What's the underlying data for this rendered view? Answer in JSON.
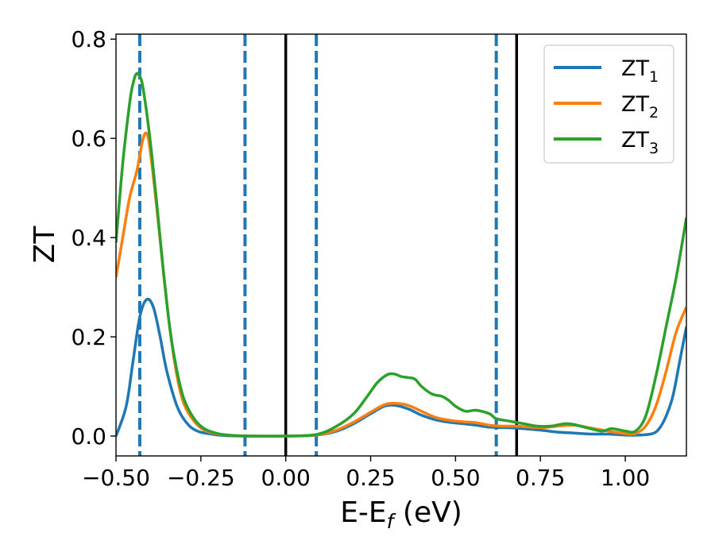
{
  "chart_data": {
    "type": "line",
    "title": "",
    "xlabel": "E-E_f (eV)",
    "ylabel": "ZT",
    "xlim": [
      -0.5,
      1.18
    ],
    "ylim": [
      -0.04,
      0.81
    ],
    "x_ticks": [
      -0.5,
      -0.25,
      0.0,
      0.25,
      0.5,
      0.75,
      1.0
    ],
    "x_tick_labels": [
      "−0.50",
      "−0.25",
      "0.00",
      "0.25",
      "0.50",
      "0.75",
      "1.00"
    ],
    "y_ticks": [
      0.0,
      0.2,
      0.4,
      0.6,
      0.8
    ],
    "y_tick_labels": [
      "0.0",
      "0.2",
      "0.4",
      "0.6",
      "0.8"
    ],
    "grid": false,
    "legend_position": "top-right",
    "vertical_lines": [
      {
        "x": -0.43,
        "style": "dashed",
        "color": "#1f77b4"
      },
      {
        "x": -0.12,
        "style": "dashed",
        "color": "#1f77b4"
      },
      {
        "x": 0.09,
        "style": "dashed",
        "color": "#1f77b4"
      },
      {
        "x": 0.62,
        "style": "dashed",
        "color": "#1f77b4"
      },
      {
        "x": 0.0,
        "style": "solid",
        "color": "#000000"
      },
      {
        "x": 0.68,
        "style": "solid",
        "color": "#000000"
      }
    ],
    "series": [
      {
        "name": "ZT",
        "subscript": "1",
        "color": "#1f77b4",
        "x": [
          -0.5,
          -0.47,
          -0.45,
          -0.43,
          -0.41,
          -0.39,
          -0.37,
          -0.35,
          -0.32,
          -0.29,
          -0.26,
          -0.22,
          -0.18,
          -0.12,
          0.0,
          0.09,
          0.15,
          0.2,
          0.25,
          0.29,
          0.32,
          0.36,
          0.4,
          0.44,
          0.48,
          0.52,
          0.56,
          0.6,
          0.65,
          0.7,
          0.75,
          0.8,
          0.85,
          0.9,
          0.95,
          1.0,
          1.04,
          1.08,
          1.1,
          1.12,
          1.14,
          1.16,
          1.18
        ],
        "y": [
          0.0,
          0.06,
          0.15,
          0.24,
          0.275,
          0.26,
          0.2,
          0.13,
          0.06,
          0.025,
          0.01,
          0.004,
          0.001,
          0.0,
          0.0,
          0.002,
          0.01,
          0.025,
          0.045,
          0.06,
          0.062,
          0.055,
          0.042,
          0.033,
          0.028,
          0.025,
          0.022,
          0.018,
          0.017,
          0.015,
          0.012,
          0.008,
          0.006,
          0.004,
          0.004,
          0.002,
          0.002,
          0.005,
          0.015,
          0.04,
          0.08,
          0.15,
          0.22
        ]
      },
      {
        "name": "ZT",
        "subscript": "2",
        "color": "#ff7f0e",
        "x": [
          -0.5,
          -0.48,
          -0.46,
          -0.44,
          -0.43,
          -0.42,
          -0.41,
          -0.4,
          -0.38,
          -0.36,
          -0.34,
          -0.32,
          -0.3,
          -0.27,
          -0.24,
          -0.2,
          -0.15,
          -0.1,
          0.0,
          0.09,
          0.15,
          0.2,
          0.25,
          0.29,
          0.32,
          0.36,
          0.4,
          0.44,
          0.48,
          0.52,
          0.56,
          0.6,
          0.64,
          0.68,
          0.72,
          0.76,
          0.8,
          0.85,
          0.9,
          0.95,
          1.0,
          1.03,
          1.06,
          1.09,
          1.12,
          1.15,
          1.18
        ],
        "y": [
          0.32,
          0.4,
          0.48,
          0.53,
          0.565,
          0.6,
          0.61,
          0.58,
          0.46,
          0.33,
          0.21,
          0.12,
          0.065,
          0.03,
          0.012,
          0.004,
          0.001,
          0.0,
          0.0,
          0.002,
          0.012,
          0.028,
          0.048,
          0.063,
          0.066,
          0.062,
          0.05,
          0.038,
          0.032,
          0.029,
          0.027,
          0.022,
          0.02,
          0.02,
          0.018,
          0.017,
          0.02,
          0.022,
          0.016,
          0.01,
          0.005,
          0.005,
          0.02,
          0.06,
          0.13,
          0.21,
          0.26
        ]
      },
      {
        "name": "ZT",
        "subscript": "3",
        "color": "#2ca02c",
        "x": [
          -0.5,
          -0.48,
          -0.46,
          -0.45,
          -0.44,
          -0.43,
          -0.42,
          -0.4,
          -0.38,
          -0.36,
          -0.34,
          -0.32,
          -0.3,
          -0.27,
          -0.24,
          -0.2,
          -0.15,
          -0.1,
          0.0,
          0.09,
          0.15,
          0.2,
          0.24,
          0.27,
          0.3,
          0.32,
          0.34,
          0.36,
          0.38,
          0.4,
          0.43,
          0.46,
          0.48,
          0.5,
          0.53,
          0.56,
          0.6,
          0.62,
          0.66,
          0.7,
          0.74,
          0.78,
          0.83,
          0.88,
          0.93,
          0.96,
          1.0,
          1.03,
          1.06,
          1.09,
          1.12,
          1.15,
          1.18
        ],
        "y": [
          0.39,
          0.55,
          0.67,
          0.71,
          0.73,
          0.725,
          0.7,
          0.6,
          0.47,
          0.33,
          0.21,
          0.13,
          0.075,
          0.035,
          0.015,
          0.005,
          0.001,
          0.0,
          0.0,
          0.003,
          0.02,
          0.045,
          0.08,
          0.108,
          0.124,
          0.125,
          0.12,
          0.118,
          0.115,
          0.1,
          0.085,
          0.08,
          0.072,
          0.06,
          0.05,
          0.052,
          0.045,
          0.035,
          0.03,
          0.025,
          0.02,
          0.02,
          0.025,
          0.018,
          0.01,
          0.015,
          0.01,
          0.01,
          0.04,
          0.12,
          0.22,
          0.32,
          0.44
        ]
      }
    ]
  }
}
